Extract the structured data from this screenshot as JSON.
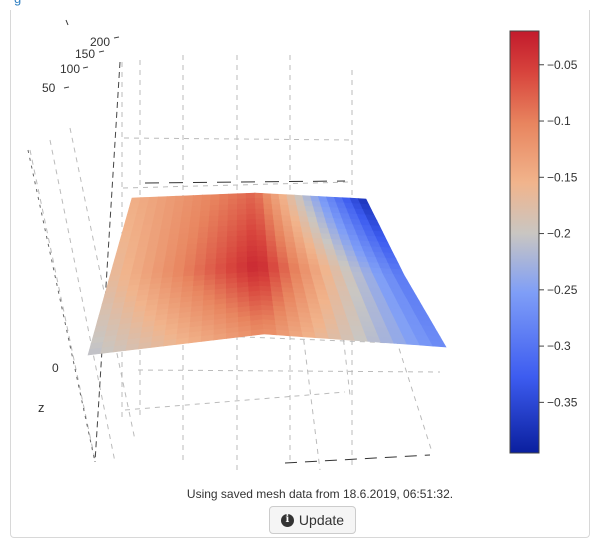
{
  "top_link": {
    "text": "g"
  },
  "chart_data": {
    "type": "heatmap",
    "subtype": "3d-surface",
    "title": "",
    "axes": {
      "x": {
        "label": "",
        "ticks": [
          "200",
          "150",
          "100",
          "50",
          "0"
        ]
      },
      "z": {
        "label": "z"
      }
    },
    "surface": {
      "rows": 3,
      "cols": 3,
      "z_grid": [
        [
          -0.15,
          -0.08,
          -0.38
        ],
        [
          -0.17,
          -0.03,
          -0.3
        ],
        [
          -0.21,
          -0.11,
          -0.28
        ]
      ]
    },
    "colorbar": {
      "min": -0.395,
      "max": -0.02,
      "ticks": [
        -0.05,
        -0.1,
        -0.15,
        -0.2,
        -0.25,
        -0.3,
        -0.35
      ],
      "tick_labels": [
        "−0.05",
        "−0.1",
        "−0.15",
        "−0.2",
        "−0.25",
        "−0.3",
        "−0.35"
      ],
      "colorscale": [
        [
          0.0,
          "#0a1f9e"
        ],
        [
          0.18,
          "#3d5cf0"
        ],
        [
          0.38,
          "#7f9ef7"
        ],
        [
          0.52,
          "#c9c6c2"
        ],
        [
          0.64,
          "#f1b48c"
        ],
        [
          0.78,
          "#e8855f"
        ],
        [
          0.9,
          "#d8453d"
        ],
        [
          1.0,
          "#c21a2c"
        ]
      ]
    }
  },
  "footer": {
    "status_text": "Using saved mesh data from 18.6.2019, 06:51:32.",
    "update_label": "Update"
  },
  "colors": {
    "grid": "#bbbbbb",
    "axis": "#333333",
    "link": "#2f7fc1"
  }
}
